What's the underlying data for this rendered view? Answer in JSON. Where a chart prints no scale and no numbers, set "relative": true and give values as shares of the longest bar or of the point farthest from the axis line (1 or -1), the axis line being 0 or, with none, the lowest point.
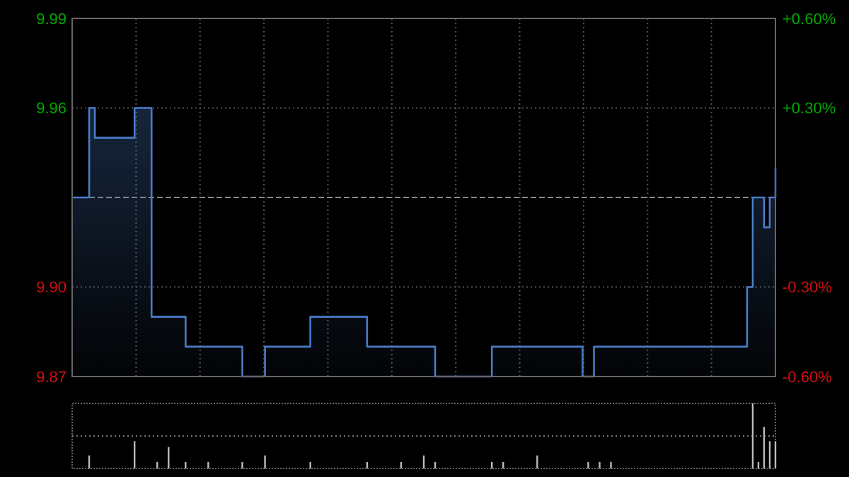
{
  "chart_data": [
    {
      "type": "area",
      "categories": [
        null,
        null,
        null,
        null,
        null,
        null,
        null,
        null,
        null,
        null,
        null,
        null,
        null,
        null,
        null,
        null,
        null,
        null,
        null,
        null,
        null,
        null,
        null,
        null,
        null,
        null,
        null,
        null,
        null,
        null,
        null,
        null,
        null,
        null,
        null,
        null,
        null,
        null,
        null,
        null,
        null,
        null,
        null,
        null,
        null,
        null,
        null,
        null,
        null,
        null,
        null,
        null,
        null,
        null,
        null,
        null,
        null,
        null,
        null,
        null,
        null,
        null,
        null,
        null,
        null,
        null,
        null,
        null,
        null,
        null,
        null,
        null,
        null,
        null,
        null,
        null,
        null,
        null,
        null,
        null,
        null,
        null,
        null,
        null,
        null,
        null,
        null,
        null,
        null,
        null,
        null,
        null,
        null,
        null,
        null,
        null,
        null,
        null,
        null,
        null,
        null,
        null,
        null,
        null,
        null,
        null,
        null,
        null,
        null,
        null,
        null,
        null,
        null,
        null,
        null,
        null,
        null,
        null,
        null,
        null,
        null,
        null,
        null,
        null,
        null
      ],
      "series": [
        {
          "color": "#4a7cc7",
          "values": [
            9.93,
            9.93,
            9.93,
            9.96,
            9.95,
            9.95,
            9.95,
            9.95,
            9.95,
            9.95,
            9.95,
            9.96,
            9.96,
            9.96,
            9.89,
            9.89,
            9.89,
            9.89,
            9.89,
            9.89,
            9.88,
            9.88,
            9.88,
            9.88,
            9.88,
            9.88,
            9.88,
            9.88,
            9.88,
            9.88,
            9.87,
            9.87,
            9.87,
            9.87,
            9.88,
            9.88,
            9.88,
            9.88,
            9.88,
            9.88,
            9.88,
            9.88,
            9.89,
            9.89,
            9.89,
            9.89,
            9.89,
            9.89,
            9.89,
            9.89,
            9.89,
            9.89,
            9.88,
            9.88,
            9.88,
            9.88,
            9.88,
            9.88,
            9.88,
            9.88,
            9.88,
            9.88,
            9.88,
            9.88,
            9.87,
            9.87,
            9.87,
            9.87,
            9.87,
            9.87,
            9.87,
            9.87,
            9.87,
            9.87,
            9.88,
            9.88,
            9.88,
            9.88,
            9.88,
            9.88,
            9.88,
            9.88,
            9.88,
            9.88,
            9.88,
            9.88,
            9.88,
            9.88,
            9.88,
            9.88,
            9.87,
            9.87,
            9.88,
            9.88,
            9.88,
            9.88,
            9.88,
            9.88,
            9.88,
            9.88,
            9.88,
            9.88,
            9.88,
            9.88,
            9.88,
            9.88,
            9.88,
            9.88,
            9.88,
            9.88,
            9.88,
            9.88,
            9.88,
            9.88,
            9.88,
            9.88,
            9.88,
            9.88,
            9.88,
            9.9,
            9.93,
            9.93,
            9.92,
            9.93,
            9.94
          ]
        }
      ],
      "ylim": [
        9.87,
        9.99
      ],
      "yticks": [
        9.87,
        {
          "value": 9.9,
          "label": "9.90"
        },
        9.96,
        9.99
      ],
      "y2lim": [
        -0.6,
        0.6
      ],
      "y2ticks": [
        {
          "value": -0.6,
          "label": "-0.60%"
        },
        {
          "value": -0.3,
          "label": "-0.30%"
        },
        {
          "value": 0.3,
          "label": "+0.30%"
        },
        {
          "value": 0.6,
          "label": "+0.60%"
        }
      ],
      "ref_lines": [
        {
          "axis": "y",
          "value": 9.93
        }
      ],
      "grid": true,
      "line_style": "solid"
    },
    {
      "type": "bar",
      "relative": true,
      "categories": [
        null,
        null,
        null,
        null,
        null,
        null,
        null,
        null,
        null,
        null,
        null,
        null,
        null,
        null,
        null,
        null,
        null,
        null,
        null,
        null,
        null,
        null,
        null,
        null,
        null,
        null,
        null,
        null,
        null,
        null,
        null,
        null,
        null,
        null,
        null,
        null,
        null,
        null,
        null,
        null,
        null,
        null,
        null,
        null,
        null,
        null,
        null,
        null,
        null,
        null,
        null,
        null,
        null,
        null,
        null,
        null,
        null,
        null,
        null,
        null,
        null,
        null,
        null,
        null,
        null,
        null,
        null,
        null,
        null,
        null,
        null,
        null,
        null,
        null,
        null,
        null,
        null,
        null,
        null,
        null,
        null,
        null,
        null,
        null,
        null,
        null,
        null,
        null,
        null,
        null,
        null,
        null,
        null,
        null,
        null,
        null,
        null,
        null,
        null,
        null,
        null,
        null,
        null,
        null,
        null,
        null,
        null,
        null,
        null,
        null,
        null,
        null,
        null,
        null,
        null,
        null,
        null,
        null,
        null,
        null,
        null,
        null,
        null,
        null,
        null
      ],
      "values": [
        0,
        0,
        0,
        0.2,
        0,
        0,
        0,
        0,
        0,
        0,
        0,
        0.42,
        0,
        0,
        0,
        0.1,
        0,
        0.33,
        0,
        0,
        0.1,
        0,
        0,
        0,
        0.1,
        0,
        0,
        0,
        0,
        0,
        0.1,
        0,
        0,
        0,
        0.2,
        0,
        0,
        0,
        0,
        0,
        0,
        0,
        0.1,
        0,
        0,
        0,
        0,
        0,
        0,
        0,
        0,
        0,
        0.1,
        0,
        0,
        0,
        0,
        0,
        0.1,
        0,
        0,
        0,
        0.2,
        0,
        0.1,
        0,
        0,
        0,
        0,
        0,
        0,
        0,
        0,
        0,
        0.1,
        0,
        0.1,
        0,
        0,
        0,
        0,
        0,
        0.2,
        0,
        0,
        0,
        0,
        0,
        0,
        0,
        0,
        0.1,
        0,
        0.1,
        0,
        0.1,
        0,
        0,
        0,
        0,
        0,
        0,
        0,
        0,
        0,
        0,
        0,
        0,
        0,
        0,
        0,
        0,
        0,
        0,
        0,
        0,
        0,
        0,
        0,
        0,
        1,
        0.1,
        0.64,
        0.42,
        0.42
      ],
      "color": "#bbbbbb",
      "ref_lines": [
        {
          "axis": "y",
          "value": 0.5
        }
      ]
    }
  ]
}
